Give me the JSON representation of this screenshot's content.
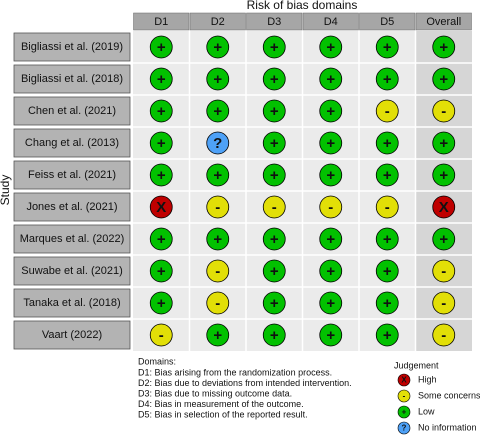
{
  "title": "Risk of bias domains",
  "y_label": "Study",
  "columns": [
    "D1",
    "D2",
    "D3",
    "D4",
    "D5",
    "Overall"
  ],
  "rows": [
    {
      "study": "Bigliassi et al. (2019)",
      "judgements": [
        "+",
        "+",
        "+",
        "+",
        "+",
        "+"
      ]
    },
    {
      "study": "Bigliassi et al. (2018)",
      "judgements": [
        "+",
        "+",
        "+",
        "+",
        "+",
        "+"
      ]
    },
    {
      "study": "Chen et al. (2021)",
      "judgements": [
        "+",
        "+",
        "+",
        "+",
        "-",
        "-"
      ]
    },
    {
      "study": "Chang et al. (2013)",
      "judgements": [
        "+",
        "?",
        "+",
        "+",
        "+",
        "+"
      ]
    },
    {
      "study": "Feiss et al. (2021)",
      "judgements": [
        "+",
        "+",
        "+",
        "+",
        "+",
        "+"
      ]
    },
    {
      "study": "Jones et al. (2021)",
      "judgements": [
        "X",
        "-",
        "-",
        "-",
        "-",
        "X"
      ]
    },
    {
      "study": "Marques et al. (2022)",
      "judgements": [
        "+",
        "+",
        "+",
        "+",
        "+",
        "+"
      ]
    },
    {
      "study": "Suwabe et al. (2021)",
      "judgements": [
        "+",
        "-",
        "+",
        "+",
        "+",
        "-"
      ]
    },
    {
      "study": "Tanaka et al. (2018)",
      "judgements": [
        "+",
        "-",
        "+",
        "+",
        "+",
        "-"
      ]
    },
    {
      "study": "Vaart (2022)",
      "judgements": [
        "-",
        "+",
        "+",
        "+",
        "+",
        "-"
      ]
    }
  ],
  "domains": {
    "title": "Domains:",
    "lines": [
      "D1: Bias arising from the randomization process.",
      "D2: Bias due to deviations from intended intervention.",
      "D3: Bias due to missing outcome data.",
      "D4: Bias in measurement of the outcome.",
      "D5: Bias in selection of the reported result."
    ]
  },
  "legend": {
    "title": "Judgement",
    "items": [
      {
        "symbol": "X",
        "label": "High",
        "color": "#bf0000"
      },
      {
        "symbol": "-",
        "label": "Some concerns",
        "color": "#e2df07"
      },
      {
        "symbol": "+",
        "label": "Low",
        "color": "#02c100"
      },
      {
        "symbol": "?",
        "label": "No information",
        "color": "#4ea1f7"
      }
    ]
  }
}
